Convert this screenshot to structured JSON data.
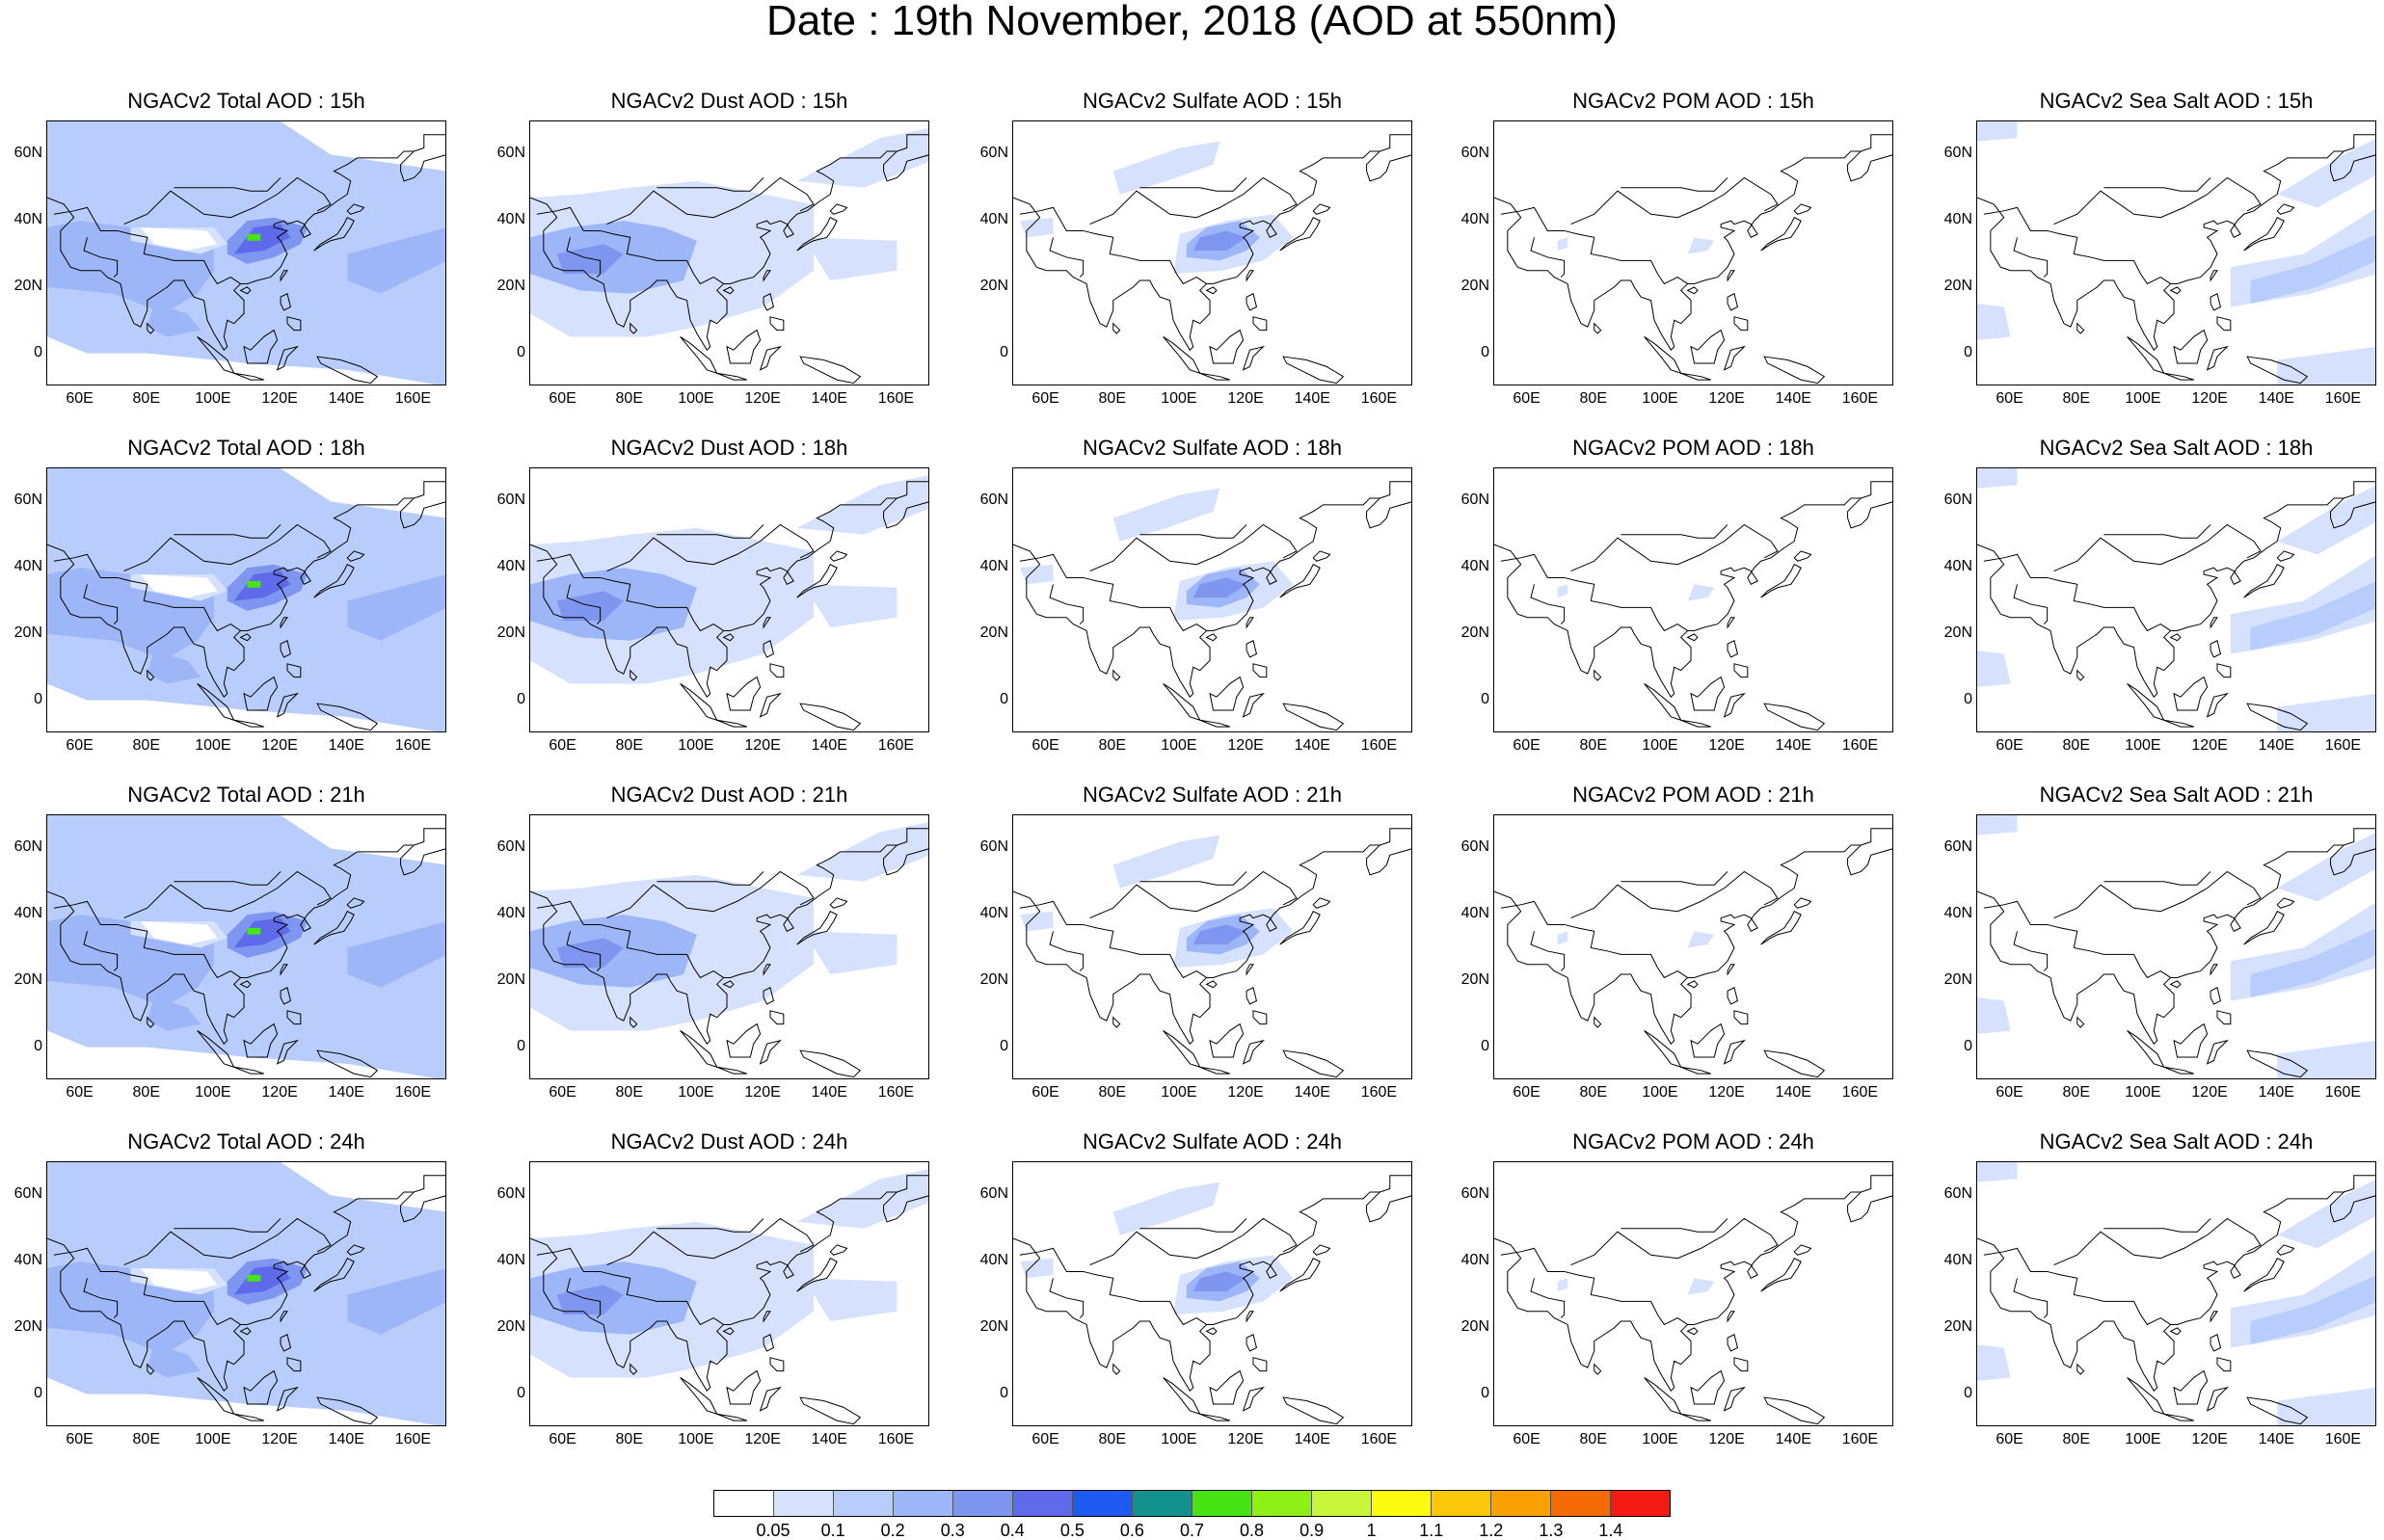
{
  "title": "Date : 19th November, 2018 (AOD at 550nm)",
  "panels": [
    [
      {
        "title": "NGACv2 Total AOD : 15h",
        "field": "total"
      },
      {
        "title": "NGACv2 Dust AOD : 15h",
        "field": "dust"
      },
      {
        "title": "NGACv2 Sulfate AOD : 15h",
        "field": "sulfate"
      },
      {
        "title": "NGACv2 POM AOD : 15h",
        "field": "pom"
      },
      {
        "title": "NGACv2 Sea Salt AOD : 15h",
        "field": "seasalt"
      }
    ],
    [
      {
        "title": "NGACv2 Total AOD : 18h",
        "field": "total"
      },
      {
        "title": "NGACv2 Dust AOD : 18h",
        "field": "dust"
      },
      {
        "title": "NGACv2 Sulfate AOD : 18h",
        "field": "sulfate"
      },
      {
        "title": "NGACv2 POM AOD : 18h",
        "field": "pom"
      },
      {
        "title": "NGACv2 Sea Salt AOD : 18h",
        "field": "seasalt"
      }
    ],
    [
      {
        "title": "NGACv2 Total AOD : 21h",
        "field": "total"
      },
      {
        "title": "NGACv2 Dust AOD : 21h",
        "field": "dust"
      },
      {
        "title": "NGACv2 Sulfate AOD : 21h",
        "field": "sulfate"
      },
      {
        "title": "NGACv2 POM AOD : 21h",
        "field": "pom"
      },
      {
        "title": "NGACv2 Sea Salt AOD : 21h",
        "field": "seasalt"
      }
    ],
    [
      {
        "title": "NGACv2 Total AOD : 24h",
        "field": "total"
      },
      {
        "title": "NGACv2 Dust AOD : 24h",
        "field": "dust"
      },
      {
        "title": "NGACv2 Sulfate AOD : 24h",
        "field": "sulfate"
      },
      {
        "title": "NGACv2 POM AOD : 24h",
        "field": "pom"
      },
      {
        "title": "NGACv2 Sea Salt  AOD : 24h",
        "field": "seasalt"
      }
    ]
  ],
  "lat_labels": [
    "60N",
    "40N",
    "20N",
    "0"
  ],
  "lon_labels": [
    "60E",
    "80E",
    "100E",
    "120E",
    "140E",
    "160E"
  ],
  "colorbar": {
    "labels": [
      "0.05",
      "0.1",
      "0.2",
      "0.3",
      "0.4",
      "0.5",
      "0.6",
      "0.7",
      "0.8",
      "0.9",
      "1",
      "1.1",
      "1.2",
      "1.3",
      "1.4"
    ],
    "colors": [
      "#ffffff",
      "#d5e1fd",
      "#b8cdfb",
      "#9db6f8",
      "#7f96f1",
      "#5f6aea",
      "#1f5af0",
      "#13918f",
      "#46e414",
      "#8ef016",
      "#c6f53a",
      "#fbfb12",
      "#fbc70b",
      "#f9a003",
      "#f46b06",
      "#f21a12"
    ]
  }
}
